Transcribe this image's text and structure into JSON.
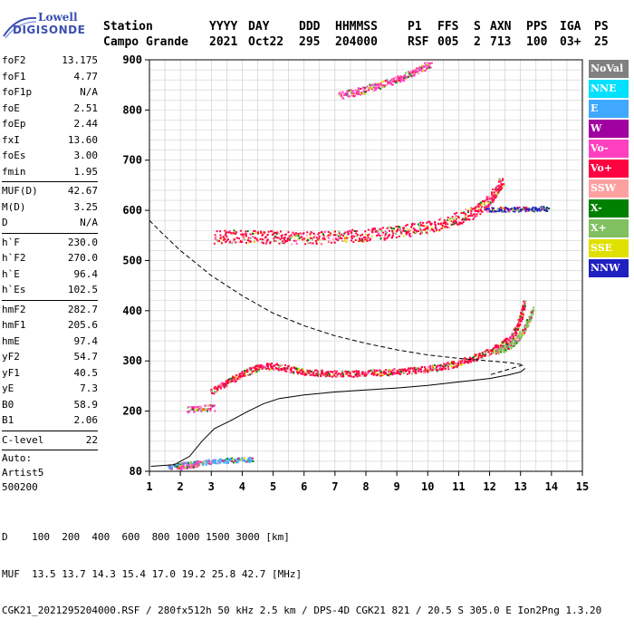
{
  "logo": {
    "line1": "Lowell",
    "line2": "DIGISONDE"
  },
  "header": {
    "cols": [
      {
        "label": "Station",
        "value": "Campo Grande"
      },
      {
        "label": "YYYY",
        "value": "2021"
      },
      {
        "label": "DAY",
        "value": "Oct22"
      },
      {
        "label": "DDD",
        "value": "295"
      },
      {
        "label": "HHMMSS",
        "value": "204000"
      },
      {
        "label": "P1",
        "value": "RSF"
      },
      {
        "label": "FFS",
        "value": "005"
      },
      {
        "label": "S",
        "value": "2"
      },
      {
        "label": "AXN",
        "value": "713"
      },
      {
        "label": "PPS",
        "value": "100"
      },
      {
        "label": "IGA",
        "value": "03+"
      },
      {
        "label": "PS",
        "value": "25"
      }
    ]
  },
  "params": {
    "g1": [
      {
        "name": "foF2",
        "value": "13.175"
      },
      {
        "name": "foF1",
        "value": "4.77"
      },
      {
        "name": "foF1p",
        "value": "N/A"
      },
      {
        "name": "foE",
        "value": "2.51"
      },
      {
        "name": "foEp",
        "value": "2.44"
      },
      {
        "name": "fxI",
        "value": "13.60"
      },
      {
        "name": "foEs",
        "value": "3.00"
      },
      {
        "name": "fmin",
        "value": "1.95"
      }
    ],
    "g2": [
      {
        "name": "MUF(D)",
        "value": "42.67"
      },
      {
        "name": "M(D)",
        "value": "3.25"
      },
      {
        "name": "D",
        "value": "N/A"
      }
    ],
    "g3": [
      {
        "name": "h`F",
        "value": "230.0"
      },
      {
        "name": "h`F2",
        "value": "270.0"
      },
      {
        "name": "h`E",
        "value": "96.4"
      },
      {
        "name": "h`Es",
        "value": "102.5"
      }
    ],
    "g4": [
      {
        "name": "hmF2",
        "value": "282.7"
      },
      {
        "name": "hmF1",
        "value": "205.6"
      },
      {
        "name": "hmE",
        "value": "97.4"
      },
      {
        "name": "yF2",
        "value": "54.7"
      },
      {
        "name": "yF1",
        "value": "40.5"
      },
      {
        "name": "yE",
        "value": "7.3"
      },
      {
        "name": "B0",
        "value": "58.9"
      },
      {
        "name": "B1",
        "value": "2.06"
      }
    ],
    "g5": [
      {
        "name": "C-level",
        "value": "22"
      }
    ],
    "autoscale": [
      "Auto:",
      "Artist5",
      "500200"
    ]
  },
  "legend": [
    {
      "label": "NoVal",
      "color": "#808080"
    },
    {
      "label": "NNE",
      "color": "#00e0ff"
    },
    {
      "label": "E",
      "color": "#40a8ff"
    },
    {
      "label": "W",
      "color": "#a000a0"
    },
    {
      "label": "Vo-",
      "color": "#ff40c0"
    },
    {
      "label": "Vo+",
      "color": "#ff0040"
    },
    {
      "label": "SSW",
      "color": "#ffa0a0"
    },
    {
      "label": "X-",
      "color": "#008000"
    },
    {
      "label": "X+",
      "color": "#80c060"
    },
    {
      "label": "SSE",
      "color": "#e0e000"
    },
    {
      "label": "NNW",
      "color": "#2020c0"
    }
  ],
  "footer": {
    "line1": "D    100  200  400  600  800 1000 1500 3000 [km]",
    "line2": "MUF  13.5 13.7 14.3 15.4 17.0 19.2 25.8 42.7 [MHz]",
    "line3": "CGK21_2021295204000.RSF / 280fx512h 50 kHz 2.5 km / DPS-4D CGK21 821 / 20.5 S 305.0 E Ion2Png 1.3.20"
  },
  "chart_data": {
    "type": "scatter",
    "xlim": [
      1,
      15
    ],
    "ylim": [
      80,
      900
    ],
    "x_ticks": [
      1,
      2,
      3,
      4,
      5,
      6,
      7,
      8,
      9,
      10,
      11,
      12,
      13,
      14,
      15
    ],
    "y_ticks": [
      80,
      200,
      300,
      400,
      500,
      600,
      700,
      800,
      900
    ],
    "grid": true,
    "traces": [
      {
        "name": "Es",
        "color": "#40a8ff",
        "points": [
          [
            1.6,
            90
          ],
          [
            1.9,
            92
          ],
          [
            2.2,
            95
          ],
          [
            2.6,
            98
          ],
          [
            3.0,
            100
          ],
          [
            3.4,
            102
          ],
          [
            3.8,
            104
          ],
          [
            4.2,
            105
          ],
          [
            4.3,
            103
          ]
        ]
      },
      {
        "name": "E",
        "color": "#ff40c0",
        "points": [
          [
            1.9,
            88
          ],
          [
            2.1,
            90
          ],
          [
            2.3,
            92
          ],
          [
            2.5,
            95
          ],
          [
            2.6,
            98
          ]
        ]
      },
      {
        "name": "F1",
        "color": "#ff40c0",
        "points": [
          [
            2.2,
            205
          ],
          [
            2.5,
            206
          ],
          [
            2.8,
            207
          ],
          [
            3.1,
            208
          ]
        ]
      },
      {
        "name": "F",
        "color": "#ff0040",
        "points": [
          [
            3.0,
            240
          ],
          [
            3.2,
            248
          ],
          [
            3.5,
            258
          ],
          [
            3.8,
            268
          ],
          [
            4.1,
            278
          ],
          [
            4.4,
            286
          ],
          [
            4.7,
            290
          ],
          [
            5.0,
            291
          ],
          [
            5.3,
            288
          ],
          [
            5.6,
            284
          ],
          [
            6.0,
            280
          ],
          [
            6.5,
            277
          ],
          [
            7.0,
            276
          ],
          [
            7.5,
            276
          ],
          [
            8.0,
            277
          ],
          [
            8.5,
            278
          ],
          [
            9.0,
            280
          ],
          [
            9.5,
            282
          ],
          [
            10.0,
            285
          ],
          [
            10.5,
            290
          ],
          [
            11.0,
            297
          ],
          [
            11.5,
            307
          ],
          [
            12.0,
            320
          ],
          [
            12.3,
            330
          ],
          [
            12.6,
            342
          ],
          [
            12.8,
            358
          ],
          [
            12.95,
            380
          ],
          [
            13.05,
            400
          ],
          [
            13.12,
            420
          ]
        ]
      },
      {
        "name": "F-X",
        "color": "#80c060",
        "points": [
          [
            12.2,
            318
          ],
          [
            12.6,
            330
          ],
          [
            12.9,
            345
          ],
          [
            13.1,
            365
          ],
          [
            13.3,
            390
          ],
          [
            13.4,
            405
          ]
        ]
      },
      {
        "name": "2F",
        "color": "#ff0040",
        "points": [
          [
            3.1,
            548
          ],
          [
            3.6,
            549
          ],
          [
            4.5,
            549
          ],
          [
            5.0,
            548
          ],
          [
            6.0,
            546
          ],
          [
            7.0,
            548
          ],
          [
            8.0,
            552
          ],
          [
            9.0,
            558
          ],
          [
            10.0,
            568
          ],
          [
            10.5,
            576
          ],
          [
            11.0,
            586
          ],
          [
            11.5,
            598
          ],
          [
            11.8,
            612
          ],
          [
            12.0,
            624
          ],
          [
            12.2,
            640
          ],
          [
            12.4,
            660
          ]
        ]
      },
      {
        "name": "2F-NNW",
        "color": "#2020c0",
        "points": [
          [
            11.9,
            602
          ],
          [
            12.3,
            603
          ],
          [
            12.7,
            603
          ],
          [
            13.1,
            604
          ],
          [
            13.5,
            604
          ],
          [
            13.9,
            605
          ]
        ]
      },
      {
        "name": "3F",
        "color": "#ff40c0",
        "points": [
          [
            7.1,
            830
          ],
          [
            7.6,
            836
          ],
          [
            8.0,
            843
          ],
          [
            8.5,
            852
          ],
          [
            9.0,
            862
          ],
          [
            9.4,
            872
          ],
          [
            9.7,
            882
          ],
          [
            10.1,
            894
          ]
        ]
      }
    ],
    "profile": [
      [
        1.05,
        90
      ],
      [
        1.8,
        93
      ],
      [
        2.3,
        110
      ],
      [
        2.7,
        140
      ],
      [
        3.1,
        165
      ],
      [
        3.6,
        180
      ],
      [
        4.2,
        200
      ],
      [
        4.7,
        215
      ],
      [
        5.2,
        225
      ],
      [
        6.0,
        232
      ],
      [
        7.0,
        238
      ],
      [
        8.0,
        242
      ],
      [
        9.0,
        246
      ],
      [
        10.0,
        251
      ],
      [
        11.0,
        258
      ],
      [
        12.0,
        265
      ],
      [
        12.6,
        272
      ],
      [
        13.0,
        278
      ],
      [
        13.15,
        285
      ]
    ],
    "muf_curve": [
      [
        1.0,
        580
      ],
      [
        1.4,
        555
      ],
      [
        2.0,
        520
      ],
      [
        3.0,
        470
      ],
      [
        4.0,
        430
      ],
      [
        5.0,
        395
      ],
      [
        6.0,
        370
      ],
      [
        7.0,
        350
      ],
      [
        8.0,
        335
      ],
      [
        9.0,
        322
      ],
      [
        10.0,
        312
      ],
      [
        11.0,
        305
      ],
      [
        12.0,
        300
      ],
      [
        12.7,
        296
      ],
      [
        13.1,
        292
      ],
      [
        12.6,
        283
      ],
      [
        12.0,
        272
      ]
    ]
  }
}
